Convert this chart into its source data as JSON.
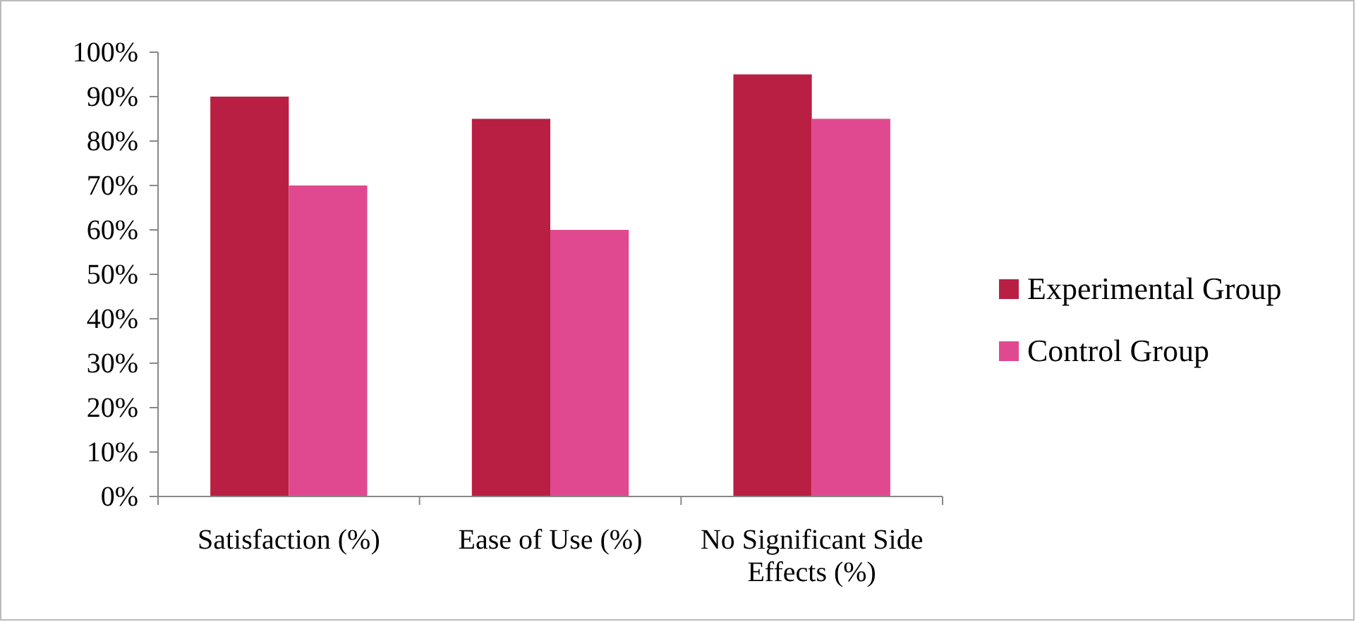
{
  "chart_data": {
    "type": "bar",
    "categories": [
      "Satisfaction (%)",
      "Ease of Use (%)",
      "No Significant Side Effects (%)"
    ],
    "series": [
      {
        "name": "Experimental Group",
        "color": "#b91f43",
        "values": [
          90,
          85,
          95
        ]
      },
      {
        "name": "Control Group",
        "color": "#e0498f",
        "values": [
          70,
          60,
          85
        ]
      }
    ],
    "ylim": [
      0,
      100
    ],
    "yticks": [
      {
        "value": 0,
        "label": "0%"
      },
      {
        "value": 10,
        "label": "10%"
      },
      {
        "value": 20,
        "label": "20%"
      },
      {
        "value": 30,
        "label": "30%"
      },
      {
        "value": 40,
        "label": "40%"
      },
      {
        "value": 50,
        "label": "50%"
      },
      {
        "value": 60,
        "label": "60%"
      },
      {
        "value": 70,
        "label": "70%"
      },
      {
        "value": 80,
        "label": "80%"
      },
      {
        "value": 90,
        "label": "90%"
      },
      {
        "value": 100,
        "label": "100%"
      }
    ],
    "grid": false,
    "legend": "right"
  }
}
